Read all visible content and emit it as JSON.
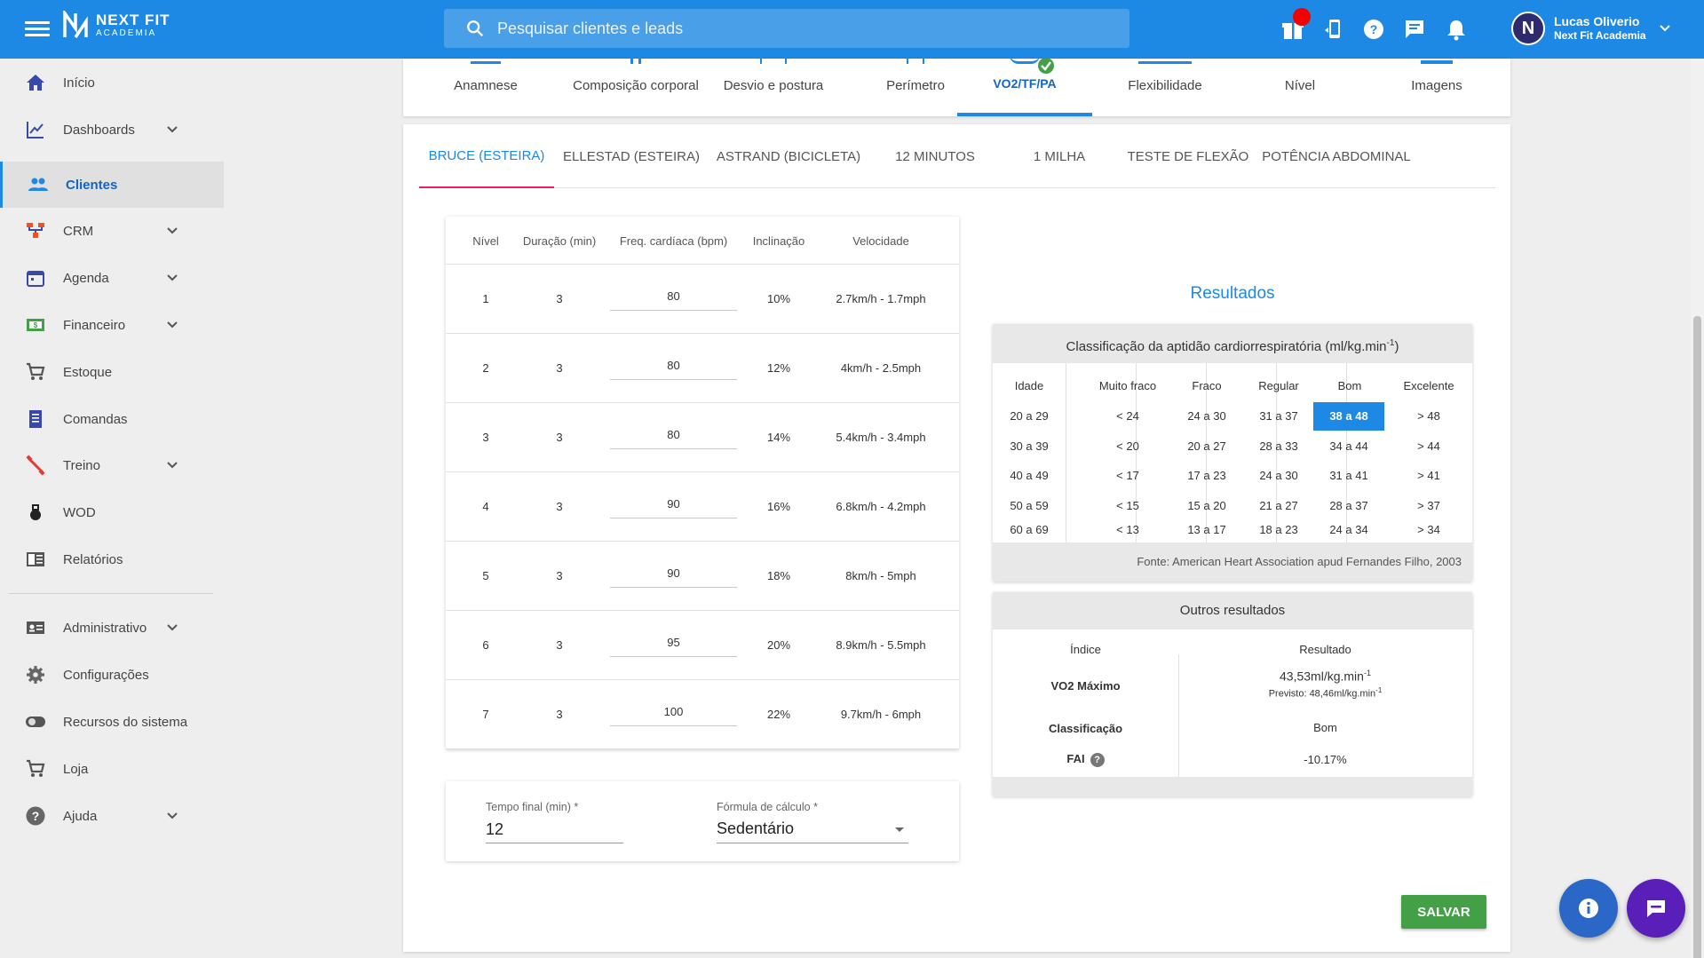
{
  "header": {
    "brand_line1": "NEXT FIT",
    "brand_line2": "ACADEMIA",
    "search_placeholder": "Pesquisar clientes e leads",
    "user_name": "Lucas Oliverio",
    "user_org": "Next Fit Academia",
    "avatar_letter": "N",
    "accent": "#1e88e5"
  },
  "sidebar": {
    "items": [
      {
        "label": "Início",
        "icon": "home-icon"
      },
      {
        "label": "Dashboards",
        "icon": "chart-line-icon"
      },
      {
        "label": "Clientes",
        "icon": "people-icon"
      },
      {
        "label": "CRM",
        "icon": "crm-icon"
      },
      {
        "label": "Agenda",
        "icon": "calendar-icon"
      },
      {
        "label": "Financeiro",
        "icon": "money-icon"
      },
      {
        "label": "Estoque",
        "icon": "cart-icon"
      },
      {
        "label": "Comandas",
        "icon": "receipt-icon"
      },
      {
        "label": "Treino",
        "icon": "dumbbell-icon"
      },
      {
        "label": "WOD",
        "icon": "kettlebell-icon"
      },
      {
        "label": "Relatórios",
        "icon": "report-icon"
      },
      {
        "label": "Administrativo",
        "icon": "id-card-icon"
      },
      {
        "label": "Configurações",
        "icon": "gear-icon"
      },
      {
        "label": "Recursos do sistema",
        "icon": "toggle-icon"
      },
      {
        "label": "Loja",
        "icon": "cart-icon"
      },
      {
        "label": "Ajuda",
        "icon": "help-icon"
      }
    ]
  },
  "assessment_tabs": [
    "Anamnese",
    "Composição corporal",
    "Desvio e postura",
    "Perímetro",
    "VO2/TF/PA",
    "Flexibilidade",
    "Nível",
    "Imagens"
  ],
  "protocol_tabs": [
    "BRUCE (ESTEIRA)",
    "ELLESTAD (ESTEIRA)",
    "ASTRAND (BICICLETA)",
    "12 MINUTOS",
    "1 MILHA",
    "TESTE DE FLEXÃO",
    "POTÊNCIA ABDOMINAL"
  ],
  "stages": {
    "headers": [
      "Nível",
      "Duração (min)",
      "Freq. cardíaca (bpm)",
      "Inclinação",
      "Velocidade"
    ],
    "rows": [
      {
        "level": "1",
        "duration": "3",
        "hr": "80",
        "incline": "10%",
        "speed": "2.7km/h - 1.7mph"
      },
      {
        "level": "2",
        "duration": "3",
        "hr": "80",
        "incline": "12%",
        "speed": "4km/h - 2.5mph"
      },
      {
        "level": "3",
        "duration": "3",
        "hr": "80",
        "incline": "14%",
        "speed": "5.4km/h - 3.4mph"
      },
      {
        "level": "4",
        "duration": "3",
        "hr": "90",
        "incline": "16%",
        "speed": "6.8km/h - 4.2mph"
      },
      {
        "level": "5",
        "duration": "3",
        "hr": "90",
        "incline": "18%",
        "speed": "8km/h - 5mph"
      },
      {
        "level": "6",
        "duration": "3",
        "hr": "95",
        "incline": "20%",
        "speed": "8.9km/h - 5.5mph"
      },
      {
        "level": "7",
        "duration": "3",
        "hr": "100",
        "incline": "22%",
        "speed": "9.7km/h - 6mph"
      }
    ]
  },
  "form": {
    "final_time_label": "Tempo final (min) *",
    "final_time_value": "12",
    "formula_label": "Fórmula de cálculo *",
    "formula_value": "Sedentário"
  },
  "results": {
    "title": "Resultados",
    "classification_title": "Classificação da aptidão cardiorrespiratória (ml/kg.min",
    "classification_title_sup": "-1",
    "classification_title_end": ")",
    "columns": [
      "Idade",
      "Muito fraco",
      "Fraco",
      "Regular",
      "Bom",
      "Excelente"
    ],
    "rows": [
      [
        "20 a 29",
        "< 24",
        "24 a 30",
        "31 a 37",
        "38 a 48",
        "> 48"
      ],
      [
        "30 a 39",
        "< 20",
        "20 a 27",
        "28 a 33",
        "34 a 44",
        "> 44"
      ],
      [
        "40 a 49",
        "< 17",
        "17 a 23",
        "24 a 30",
        "31 a 41",
        "> 41"
      ],
      [
        "50 a 59",
        "< 15",
        "15 a 20",
        "21 a 27",
        "28 a 37",
        "> 37"
      ],
      [
        "60 a 69",
        "< 13",
        "13 a 17",
        "18 a 23",
        "24 a 34",
        "> 34"
      ]
    ],
    "highlight": {
      "row": 0,
      "col": 4
    },
    "source": "Fonte: American Heart Association apud Fernandes Filho, 2003",
    "other_title": "Outros resultados",
    "other_col_index": "Índice",
    "other_col_result": "Resultado",
    "vo2_label": "VO2 Máximo",
    "vo2_value": "43,53ml/kg.min",
    "vo2_sup": "-1",
    "vo2_predicted": "Previsto: 48,46ml/kg.min",
    "vo2_predicted_sup": "-1",
    "class_label": "Classificação",
    "class_value": "Bom",
    "fai_label": "FAI",
    "fai_value": "-10.17%"
  },
  "save_label": "SALVAR"
}
